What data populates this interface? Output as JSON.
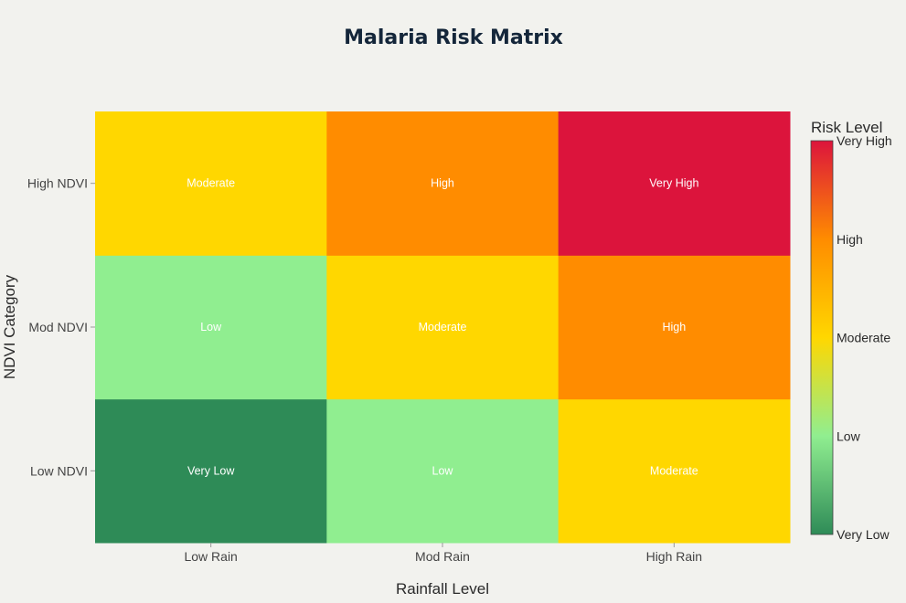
{
  "chart_data": {
    "type": "heatmap",
    "title": "Malaria Risk Matrix",
    "xlabel": "Rainfall Level",
    "ylabel": "NDVI Category",
    "x_categories": [
      "Low Rain",
      "Mod Rain",
      "High Rain"
    ],
    "y_categories": [
      "Low NDVI",
      "Mod NDVI",
      "High NDVI"
    ],
    "values": [
      [
        0,
        1,
        2
      ],
      [
        1,
        2,
        3
      ],
      [
        2,
        3,
        4
      ]
    ],
    "cell_labels": [
      [
        "Very Low",
        "Low",
        "Moderate"
      ],
      [
        "Low",
        "Moderate",
        "High"
      ],
      [
        "Moderate",
        "High",
        "Very High"
      ]
    ],
    "colorbar": {
      "title": "Risk Level",
      "ticks": [
        {
          "value": 0,
          "label": "Very Low"
        },
        {
          "value": 1,
          "label": "Low"
        },
        {
          "value": 2,
          "label": "Moderate"
        },
        {
          "value": 3,
          "label": "High"
        },
        {
          "value": 4,
          "label": "Very High"
        }
      ],
      "range": [
        0,
        4
      ]
    },
    "colors": {
      "0": "#2e8b57",
      "1": "#90ee90",
      "2": "#ffd700",
      "3": "#ff8c00",
      "4": "#dc143c"
    },
    "gradient_stops": [
      {
        "value": 0,
        "color": "#2e8b57"
      },
      {
        "value": 1,
        "color": "#90ee90"
      },
      {
        "value": 2,
        "color": "#ffd700"
      },
      {
        "value": 3,
        "color": "#ff8c00"
      },
      {
        "value": 4,
        "color": "#dc143c"
      }
    ],
    "grid": false,
    "legend": "right"
  }
}
